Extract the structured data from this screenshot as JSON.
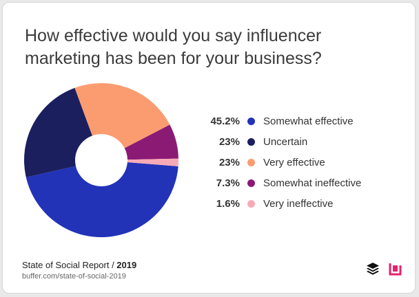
{
  "chart_data": {
    "type": "pie",
    "style": "donut",
    "title_lines": [
      "How effective would you say influencer",
      "marketing has been for your business?"
    ],
    "slices": [
      {
        "label": "Somewhat effective",
        "value": 45.2,
        "display": "45.2%",
        "color": "#2233b8"
      },
      {
        "label": "Uncertain",
        "value": 23,
        "display": "23%",
        "color": "#1b1f5e"
      },
      {
        "label": "Very effective",
        "value": 23,
        "display": "23%",
        "color": "#fb9c70"
      },
      {
        "label": "Somewhat ineffective",
        "value": 7.3,
        "display": "7.3%",
        "color": "#8b1a75"
      },
      {
        "label": "Very ineffective",
        "value": 1.6,
        "display": "1.6%",
        "color": "#f7aab6"
      }
    ],
    "legend_position": "right"
  },
  "footer": {
    "source_prefix": "State of Social Report / ",
    "source_year": "2019",
    "url": "buffer.com/state-of-social-2019"
  },
  "icons": {
    "buffer": "buffer-logo-icon",
    "report": "report-logo-icon"
  }
}
